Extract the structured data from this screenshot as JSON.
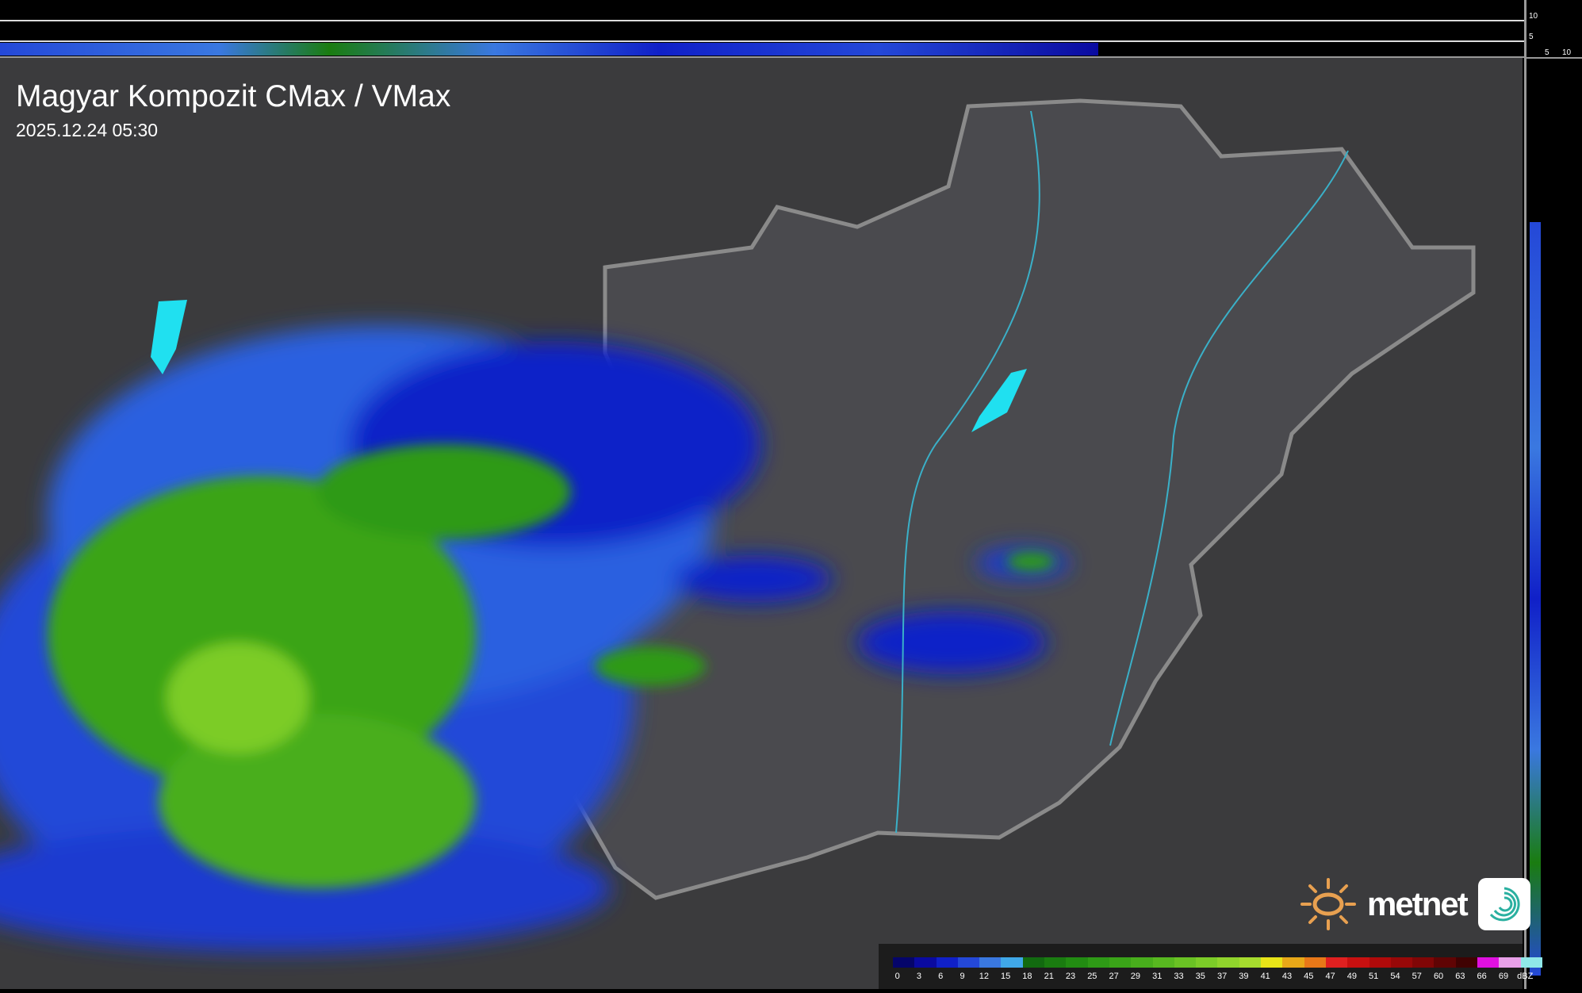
{
  "header": {
    "title": "Magyar Kompozit CMax / VMax",
    "timestamp": "2025.12.24 05:30"
  },
  "side_axis": {
    "vertical_ticks": [
      "10",
      "5"
    ],
    "horizontal_ticks": [
      "5",
      "10"
    ]
  },
  "legend": {
    "labels": [
      "0",
      "3",
      "6",
      "9",
      "12",
      "15",
      "18",
      "21",
      "23",
      "25",
      "27",
      "29",
      "31",
      "33",
      "35",
      "37",
      "39",
      "41",
      "43",
      "45",
      "47",
      "49",
      "51",
      "54",
      "57",
      "60",
      "63",
      "66",
      "69"
    ],
    "unit": "dBZ",
    "colors": [
      "#05056a",
      "#0a0aa0",
      "#1020c8",
      "#2448d8",
      "#3a78e0",
      "#40a8e8",
      "#126a10",
      "#1a7c10",
      "#228c12",
      "#2e9a16",
      "#3aa418",
      "#48ae1c",
      "#58b820",
      "#6ac224",
      "#7ccc28",
      "#90d42c",
      "#a6dc2e",
      "#e8e418",
      "#e8a818",
      "#e87818",
      "#e02020",
      "#c81010",
      "#b00a0a",
      "#980808",
      "#800606",
      "#600404",
      "#400202",
      "#e010e0",
      "#e8a0e8",
      "#90e8e8"
    ]
  },
  "branding": {
    "logo_text": "metnet"
  },
  "colors": {
    "background": "#3a3a3a",
    "border": "#8a8a8a",
    "rivers": "#3ab0c8",
    "lakes": "#20e0f0"
  }
}
